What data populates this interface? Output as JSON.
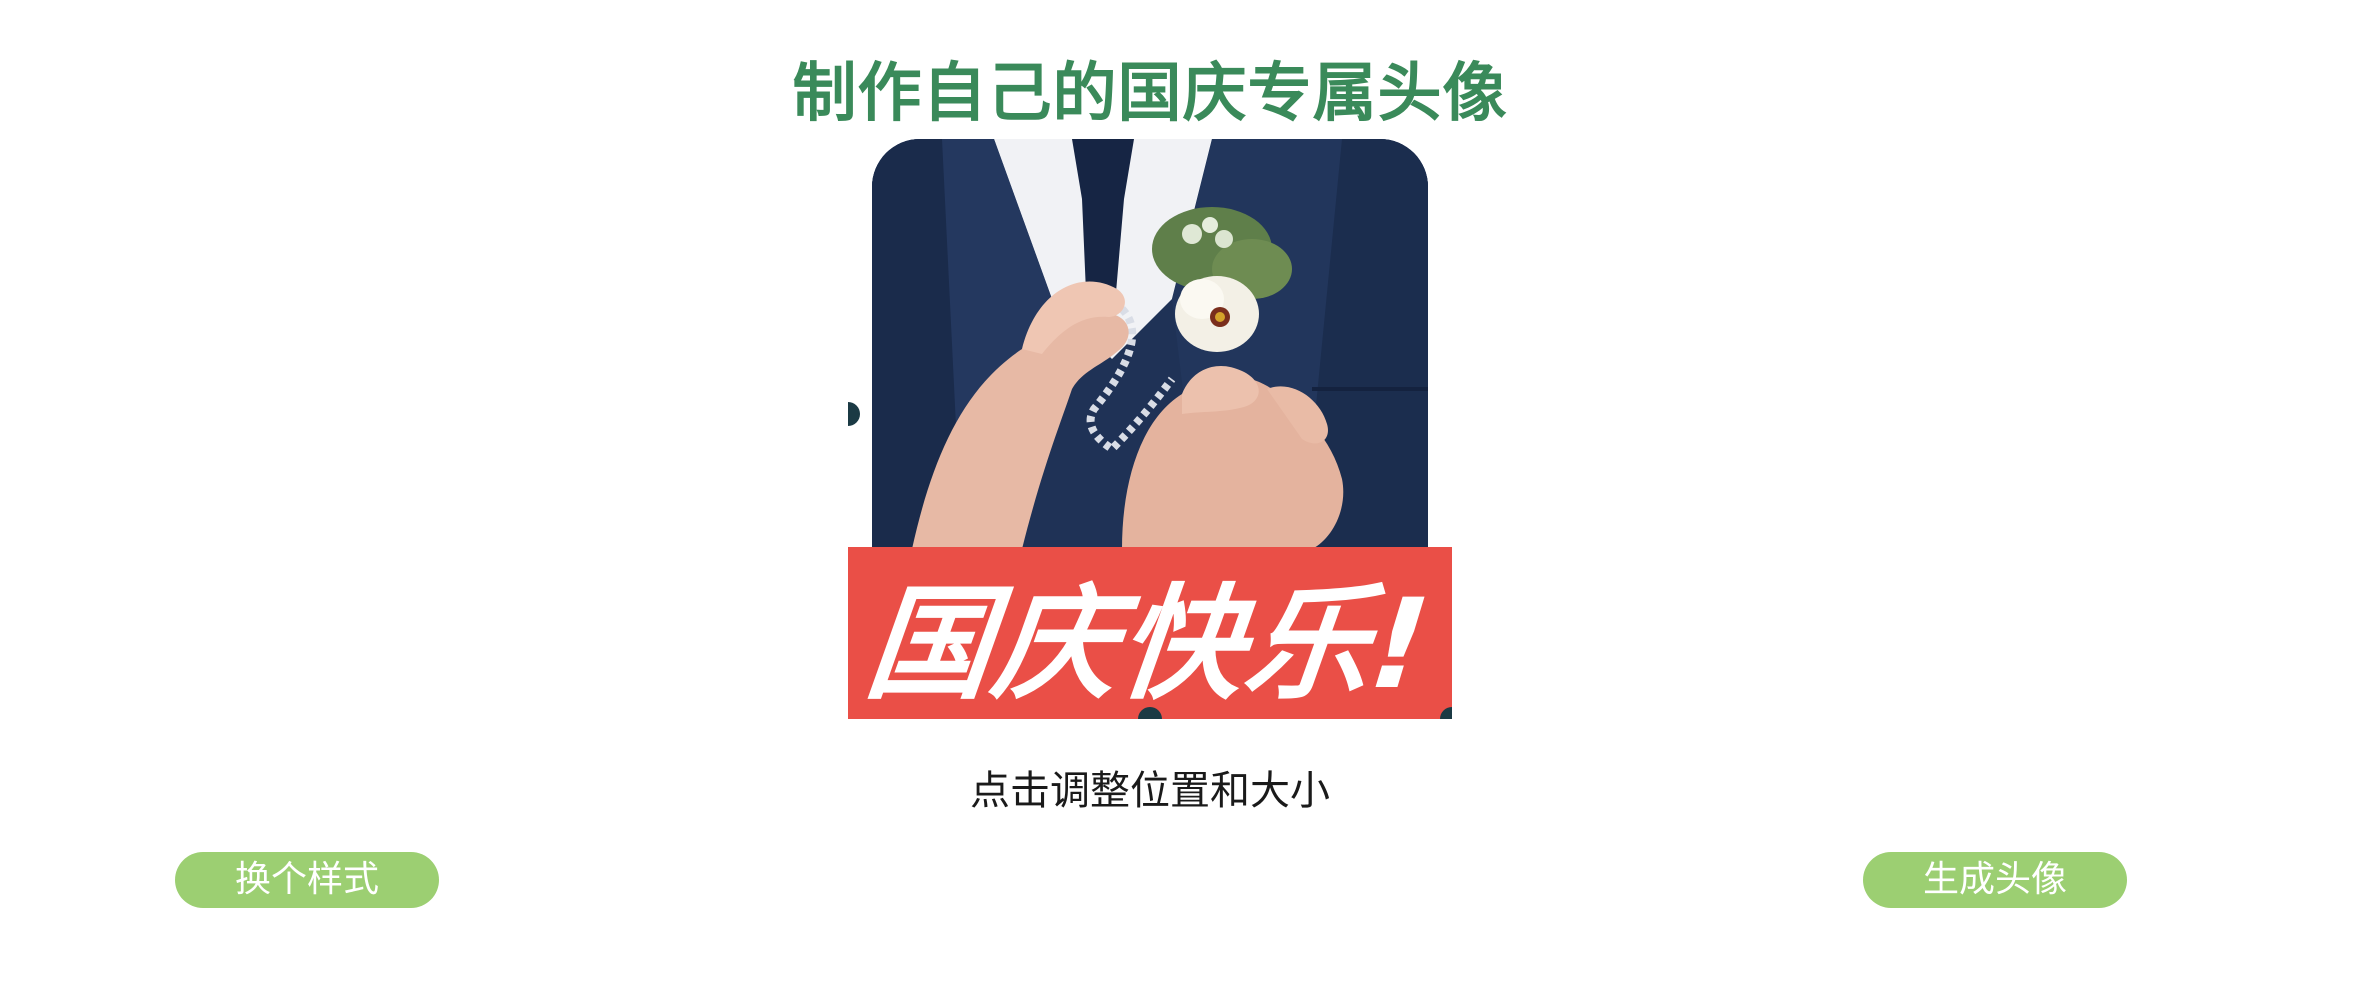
{
  "title": "制作自己的国庆专属头像",
  "editor": {
    "photo_alt": "photo",
    "frame_text": "国庆快乐!",
    "frame_color": "#ea4f47",
    "handle_color": "#1b3a44"
  },
  "hint": "点击调整位置和大小",
  "buttons": {
    "change_style": "换个样式",
    "generate": "生成头像",
    "color": "#9ccf72"
  },
  "title_color": "#3a8a5a"
}
